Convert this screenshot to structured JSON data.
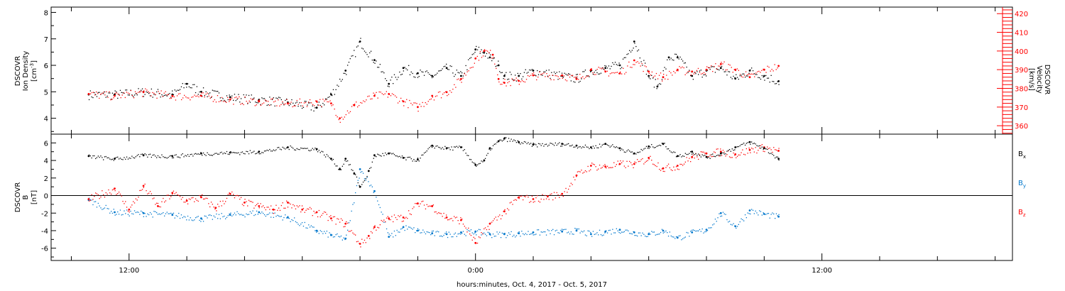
{
  "chart_data": [
    {
      "type": "scatter",
      "left_ylabel_lines": [
        "DSCOVR",
        "Ion Density"
      ],
      "left_unit_base": "[cm",
      "left_unit_sup": "-3",
      "left_unit_close": "]",
      "left_ylim": [
        3.4,
        8.2
      ],
      "left_ticks": [
        4,
        5,
        6,
        7,
        8
      ],
      "right_ylabel_lines": [
        "DSCOVR",
        "Velocity",
        "[km/s]"
      ],
      "right_ylim": [
        355.5,
        423.5
      ],
      "right_ticks": [
        360,
        370,
        380,
        390,
        400,
        410,
        420
      ],
      "colors": {
        "density": "#000000",
        "velocity": "#ff0000"
      },
      "series": [
        {
          "key": "density",
          "axis": "left",
          "x": [
            -13.4,
            -12.5,
            -11.5,
            -10.5,
            -10.0,
            -9.5,
            -8.5,
            -7.5,
            -6.5,
            -5.5,
            -5.0,
            -4.5,
            -4.0,
            -3.5,
            -3.0,
            -2.5,
            -2.0,
            -1.5,
            -1.0,
            -0.5,
            0.0,
            0.3,
            0.5,
            0.8,
            1.0,
            1.5,
            2.0,
            3.0,
            3.5,
            4.0,
            4.5,
            5.0,
            5.5,
            6.0,
            6.3,
            6.7,
            7.0,
            7.5,
            8.0,
            8.5,
            9.0,
            9.5,
            10.0,
            10.5
          ],
          "y": [
            4.9,
            4.9,
            5.0,
            4.9,
            5.3,
            5.0,
            4.8,
            4.7,
            4.6,
            4.4,
            4.9,
            5.8,
            6.9,
            6.2,
            5.3,
            5.9,
            5.7,
            5.6,
            5.9,
            5.6,
            6.6,
            6.5,
            6.3,
            6.0,
            5.6,
            5.6,
            5.8,
            5.6,
            5.5,
            5.8,
            5.9,
            6.0,
            6.9,
            5.6,
            5.2,
            6.3,
            6.3,
            5.6,
            5.8,
            5.9,
            5.5,
            5.8,
            5.6,
            5.4
          ]
        },
        {
          "key": "velocity",
          "axis": "right",
          "x": [
            -13.4,
            -12.5,
            -11.5,
            -10.5,
            -9.5,
            -8.5,
            -7.5,
            -6.5,
            -5.5,
            -5.0,
            -4.7,
            -4.2,
            -3.5,
            -3.0,
            -2.5,
            -2.0,
            -1.5,
            -1.0,
            -0.5,
            0.0,
            0.3,
            0.6,
            0.8,
            1.0,
            1.5,
            2.0,
            3.0,
            3.5,
            4.0,
            4.5,
            5.0,
            5.5,
            6.0,
            6.5,
            7.0,
            7.5,
            8.0,
            8.5,
            9.0,
            9.5,
            10.0,
            10.5
          ],
          "y": [
            377,
            376,
            378,
            376,
            376,
            374,
            373,
            372,
            373,
            372,
            364,
            371,
            376,
            377,
            373,
            370,
            376,
            378,
            385,
            396,
            400,
            398,
            385,
            383,
            384,
            387,
            387,
            385,
            390,
            389,
            388,
            395,
            389,
            386,
            390,
            389,
            390,
            393,
            390,
            386,
            390,
            392
          ]
        }
      ]
    },
    {
      "type": "scatter",
      "left_ylabel_lines": [
        "DSCOVR",
        "B"
      ],
      "left_unit": "[nT]",
      "ylim": [
        -7.4,
        7.0
      ],
      "yticks": [
        -6,
        -4,
        -2,
        0,
        2,
        4,
        6
      ],
      "zero_line": true,
      "colors": {
        "bx": "#000000",
        "by": "#0077cc",
        "bz": "#ff0000"
      },
      "series": [
        {
          "key": "bx",
          "name_base": "B",
          "name_sub": "x",
          "x": [
            -13.4,
            -12.5,
            -11.5,
            -10.5,
            -9.5,
            -8.5,
            -7.5,
            -6.5,
            -5.5,
            -5.0,
            -4.7,
            -4.5,
            -4.2,
            -4.0,
            -3.7,
            -3.5,
            -3.0,
            -2.5,
            -2.0,
            -1.5,
            -1.0,
            -0.5,
            0.0,
            0.3,
            0.5,
            0.8,
            1.0,
            1.5,
            2.0,
            3.0,
            3.5,
            4.0,
            4.5,
            5.0,
            5.5,
            6.0,
            6.5,
            7.0,
            7.5,
            8.0,
            8.5,
            9.0,
            9.5,
            10.0,
            10.5
          ],
          "y": [
            4.5,
            4.2,
            4.6,
            4.5,
            4.8,
            4.9,
            5.0,
            5.5,
            5.3,
            4.2,
            3.0,
            4.2,
            2.5,
            1.0,
            2.8,
            4.6,
            4.8,
            4.3,
            4.1,
            5.7,
            5.4,
            5.5,
            3.5,
            4.0,
            5.4,
            6.2,
            6.5,
            6.1,
            5.8,
            5.9,
            5.7,
            5.5,
            5.9,
            5.4,
            4.8,
            5.6,
            5.9,
            4.5,
            5.0,
            4.4,
            4.8,
            5.5,
            6.1,
            5.4,
            4.2
          ]
        },
        {
          "key": "by",
          "name_base": "B",
          "name_sub": "y",
          "x": [
            -13.4,
            -12.5,
            -11.5,
            -10.5,
            -9.5,
            -8.5,
            -7.5,
            -6.5,
            -5.5,
            -5.0,
            -4.5,
            -4.0,
            -3.5,
            -3.0,
            -2.5,
            -2.0,
            -1.5,
            -1.0,
            -0.5,
            0.0,
            0.5,
            1.0,
            1.5,
            2.0,
            3.0,
            3.5,
            4.0,
            4.5,
            5.0,
            5.5,
            6.0,
            6.5,
            7.0,
            7.5,
            8.0,
            8.5,
            9.0,
            9.5,
            10.0,
            10.5
          ],
          "y": [
            -0.5,
            -1.9,
            -2.0,
            -2.2,
            -2.6,
            -2.2,
            -1.9,
            -2.5,
            -4.0,
            -4.5,
            -4.9,
            3.0,
            0.5,
            -4.7,
            -3.6,
            -4.0,
            -4.3,
            -4.4,
            -4.2,
            -4.1,
            -4.4,
            -4.4,
            -4.3,
            -4.2,
            -4.1,
            -4.0,
            -4.4,
            -4.1,
            -3.9,
            -4.2,
            -4.4,
            -4.0,
            -4.8,
            -4.2,
            -3.9,
            -2.0,
            -3.5,
            -1.7,
            -2.1,
            -2.4
          ]
        },
        {
          "key": "bz",
          "name_base": "B",
          "name_sub": "z",
          "x": [
            -13.4,
            -12.5,
            -12.0,
            -11.5,
            -11.0,
            -10.5,
            -10.0,
            -9.5,
            -9.0,
            -8.5,
            -8.0,
            -7.5,
            -7.0,
            -6.5,
            -6.0,
            -5.5,
            -5.0,
            -4.5,
            -4.0,
            -3.7,
            -3.5,
            -3.0,
            -2.5,
            -2.0,
            -1.5,
            -1.0,
            -0.5,
            0.0,
            0.5,
            1.0,
            1.5,
            2.0,
            2.5,
            3.0,
            3.5,
            4.0,
            4.5,
            5.0,
            5.5,
            6.0,
            6.5,
            7.0,
            7.5,
            8.0,
            8.5,
            9.0,
            9.5,
            10.0,
            10.5
          ],
          "y": [
            -0.4,
            0.8,
            -1.6,
            1.1,
            -1.2,
            0.3,
            -0.6,
            -0.2,
            -1.4,
            0.2,
            -0.8,
            -1.2,
            -1.6,
            -0.8,
            -1.6,
            -1.9,
            -2.6,
            -3.2,
            -5.5,
            -4.6,
            -3.6,
            -2.6,
            -2.5,
            -0.9,
            -1.2,
            -2.5,
            -2.8,
            -5.4,
            -3.2,
            -1.8,
            -0.2,
            -0.4,
            -0.1,
            0.2,
            2.3,
            3.4,
            3.3,
            3.6,
            3.6,
            4.3,
            3.1,
            3.4,
            4.4,
            4.8,
            5.0,
            4.7,
            5.2,
            5.5,
            5.1
          ]
        }
      ]
    }
  ],
  "x_axis": {
    "domain_hours": [
      -14.7,
      18.6
    ],
    "tick_labels": [
      {
        "hours": -12,
        "label": "12:00"
      },
      {
        "hours": 0,
        "label": "0:00"
      },
      {
        "hours": 12,
        "label": "12:00"
      }
    ],
    "minor_tick_every_hours": 2,
    "xlabel": "hours:minutes, Oct.  4, 2017 - Oct.  5, 2017"
  }
}
